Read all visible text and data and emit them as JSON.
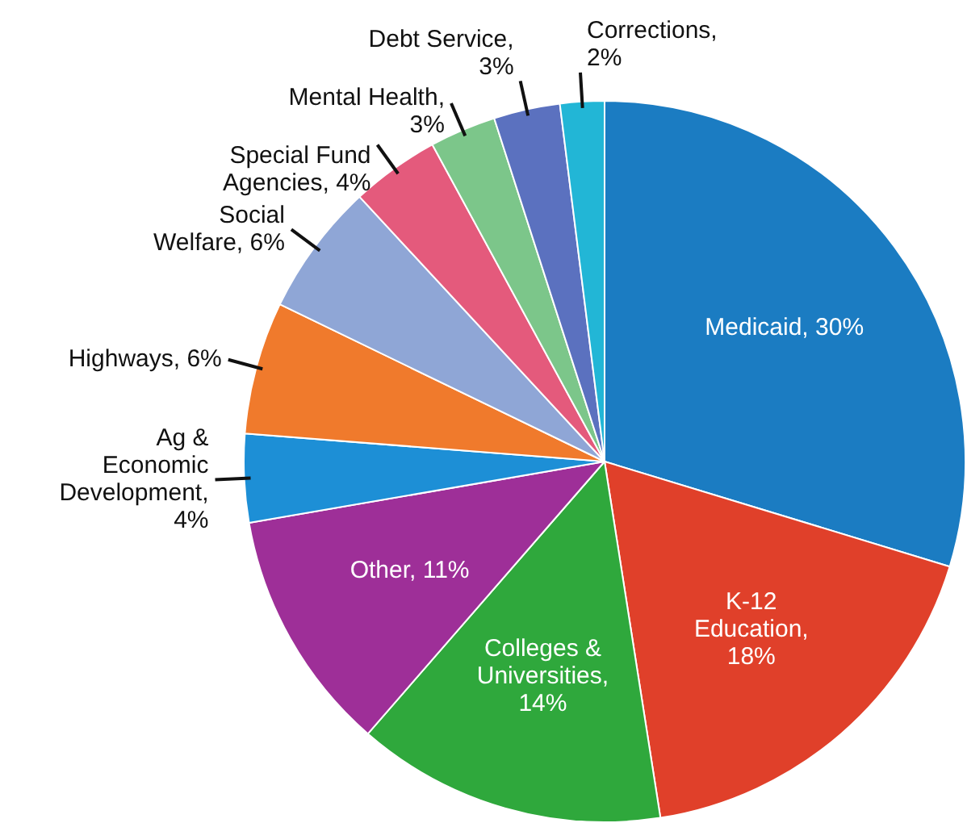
{
  "chart_data": {
    "type": "pie",
    "categories": [
      "Medicaid, 30%",
      "K-12 Education, 18%",
      "Colleges & Universities, 14%",
      "Other, 11%",
      "Ag & Economic Development, 4%",
      "Highways, 6%",
      "Social Welfare, 6%",
      "Special Fund Agencies, 4%",
      "Mental Health, 3%",
      "Debt Service, 3%",
      "Corrections, 2%"
    ],
    "values": [
      30,
      18,
      14,
      11,
      4,
      6,
      6,
      4,
      3,
      3,
      2
    ],
    "colors": [
      "#1b7cc2",
      "#e0402a",
      "#2fa83c",
      "#9e2f98",
      "#1d8fd6",
      "#f07a2c",
      "#8fa6d6",
      "#e45a7c",
      "#7cc68a",
      "#5b71bf",
      "#22b6d6"
    ],
    "legend": false
  }
}
